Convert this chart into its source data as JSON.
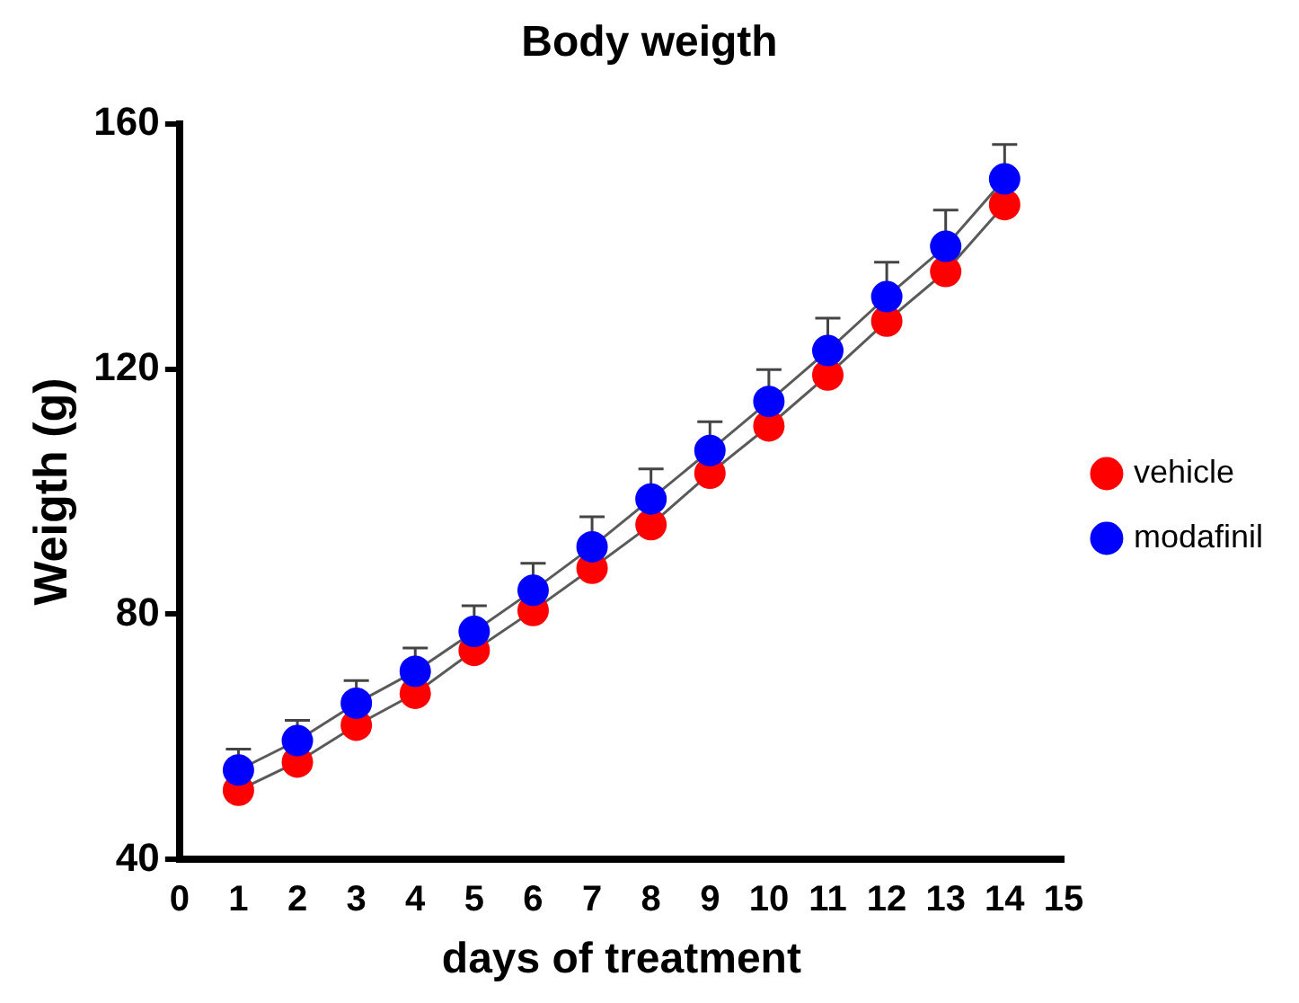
{
  "chart_data": {
    "type": "line",
    "title": "Body weigth",
    "xlabel": "days of treatment",
    "ylabel": "Weigth (g)",
    "x": [
      1,
      2,
      3,
      4,
      5,
      6,
      7,
      8,
      9,
      10,
      11,
      12,
      13,
      14
    ],
    "series": [
      {
        "name": "vehicle",
        "color": "#ff0000",
        "values": [
          51.3,
          55.9,
          61.9,
          67.1,
          74.1,
          80.6,
          87.5,
          94.6,
          103,
          110.7,
          119,
          127.8,
          135.9,
          146.8
        ]
      },
      {
        "name": "modafinil",
        "color": "#0000ff",
        "values": [
          54.6,
          59.4,
          65.5,
          70.7,
          77.2,
          83.9,
          91,
          98.8,
          106.7,
          114.7,
          123,
          131.8,
          140,
          151
        ],
        "errors": [
          [
            54.6,
            58
          ],
          [
            59.4,
            62.7
          ],
          [
            65.5,
            69.2
          ],
          [
            70.7,
            74.5
          ],
          [
            77.2,
            81.4
          ],
          [
            83.9,
            88.3
          ],
          [
            91,
            95.9
          ],
          [
            98.8,
            103.7
          ],
          [
            106.7,
            111.4
          ],
          [
            114.7,
            119.9
          ],
          [
            123,
            128.3
          ],
          [
            131.8,
            137.4
          ],
          [
            140,
            145.9
          ],
          [
            151,
            156.6
          ]
        ]
      }
    ],
    "xlim": [
      0,
      15
    ],
    "xticks": [
      0,
      1,
      2,
      3,
      4,
      5,
      6,
      7,
      8,
      9,
      10,
      11,
      12,
      13,
      14,
      15
    ],
    "ylim": [
      40,
      160
    ],
    "yticks": [
      40,
      80,
      120,
      160
    ],
    "grid": false,
    "legend": "right",
    "marker": "circle",
    "line_style": "solid"
  }
}
